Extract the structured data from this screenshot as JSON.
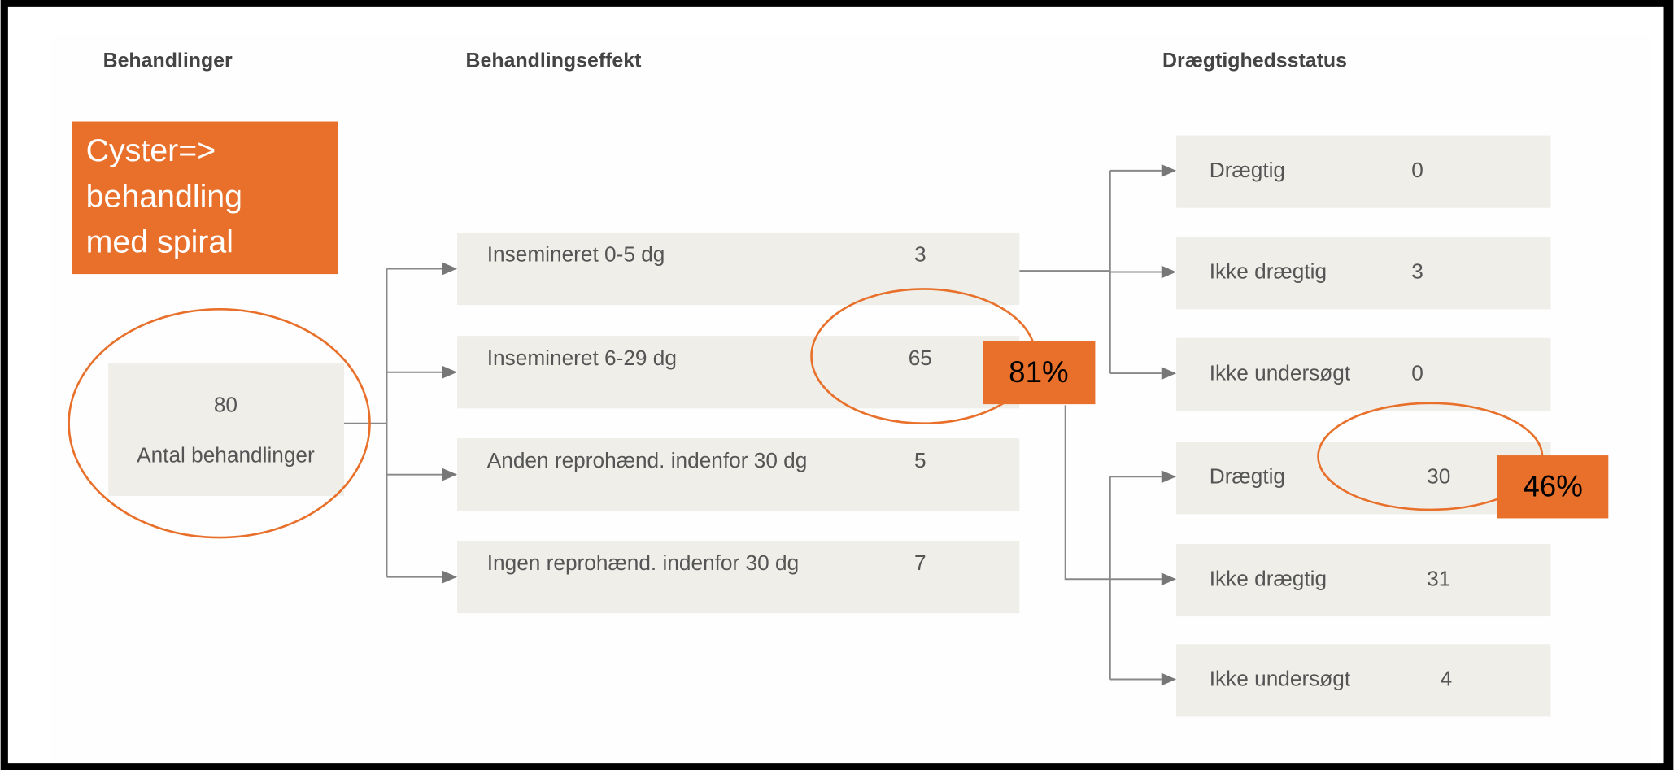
{
  "columns": [
    "Behandlinger",
    "Behandlingseffekt",
    "Drægtighedsstatus"
  ],
  "annotation": {
    "lines": [
      "Cyster=>",
      "behandling",
      "med spiral"
    ]
  },
  "root": {
    "value": 80,
    "label": "Antal behandlinger"
  },
  "effects": [
    {
      "label": "Insemineret 0-5 dg",
      "value": 3
    },
    {
      "label": "Insemineret 6-29 dg",
      "value": 65,
      "percent": "81%"
    },
    {
      "label": "Anden reprohænd. indenfor 30 dg",
      "value": 5
    },
    {
      "label": "Ingen reprohænd. indenfor 30 dg",
      "value": 7
    }
  ],
  "status_groups": [
    {
      "items": [
        {
          "label": "Drægtig",
          "value": 0
        },
        {
          "label": "Ikke drægtig",
          "value": 3
        },
        {
          "label": "Ikke undersøgt",
          "value": 0
        }
      ]
    },
    {
      "items": [
        {
          "label": "Drægtig",
          "value": 30,
          "percent": "46%"
        },
        {
          "label": "Ikke drægtig",
          "value": 31
        },
        {
          "label": "Ikke undersøgt",
          "value": 4
        }
      ]
    }
  ]
}
